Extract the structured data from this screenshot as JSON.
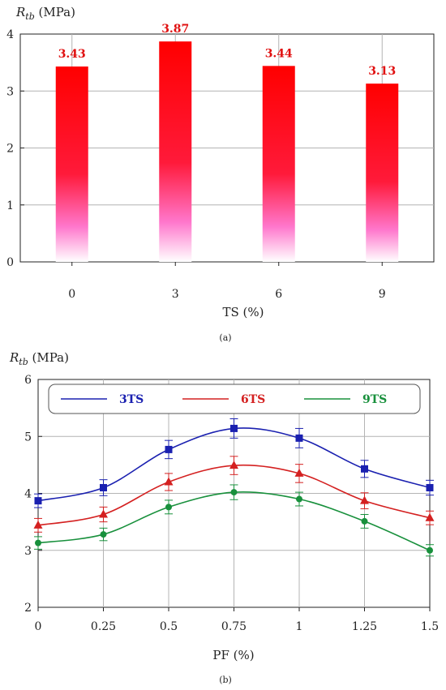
{
  "chart_data": [
    {
      "type": "bar",
      "panel": "(a)",
      "ylabel_main": "R",
      "ylabel_sub": "tb",
      "ylabel_unit": " (MPa)",
      "xlabel": "TS (%)",
      "categories": [
        "0",
        "3",
        "6",
        "9"
      ],
      "values": [
        3.43,
        3.87,
        3.44,
        3.13
      ],
      "value_labels": [
        "3.43",
        "3.87",
        "3.44",
        "3.13"
      ],
      "ylim": [
        0,
        4
      ],
      "yticks": [
        "0",
        "1",
        "2",
        "3",
        "4"
      ],
      "grid": true,
      "colors": {
        "bar_top": "#ff0000",
        "bar_mid": "#ff1a3a",
        "bar_low": "#ff77cc",
        "bar_bottom": "#ffffff",
        "label": "#e01010",
        "grid": "#b4b4b4"
      }
    },
    {
      "type": "line",
      "panel": "(b)",
      "ylabel_main": "R",
      "ylabel_sub": "tb",
      "ylabel_unit": " (MPa)",
      "xlabel": "PF (%)",
      "x": [
        0,
        0.25,
        0.5,
        0.75,
        1,
        1.25,
        1.5
      ],
      "xticks": [
        "0",
        "0.25",
        "0.5",
        "0.75",
        "1",
        "1.25",
        "1.5"
      ],
      "xlim": [
        0,
        1.5
      ],
      "ylim": [
        2,
        6
      ],
      "yticks": [
        "2",
        "3",
        "4",
        "5",
        "6"
      ],
      "grid": true,
      "legend_position": "top",
      "series": [
        {
          "name": "3TS",
          "color": "#1a20b0",
          "marker": "square",
          "values": [
            3.87,
            4.1,
            4.77,
            5.14,
            4.97,
            4.43,
            4.1
          ],
          "error": [
            0.12,
            0.14,
            0.16,
            0.17,
            0.17,
            0.15,
            0.13
          ]
        },
        {
          "name": "6TS",
          "color": "#d42020",
          "marker": "triangle",
          "values": [
            3.44,
            3.63,
            4.2,
            4.49,
            4.35,
            3.87,
            3.57
          ],
          "error": [
            0.12,
            0.13,
            0.15,
            0.16,
            0.16,
            0.14,
            0.12
          ]
        },
        {
          "name": "9TS",
          "color": "#18903c",
          "marker": "circle",
          "values": [
            3.13,
            3.28,
            3.76,
            4.02,
            3.9,
            3.51,
            3.0
          ],
          "error": [
            0.11,
            0.11,
            0.12,
            0.13,
            0.12,
            0.12,
            0.1
          ]
        }
      ]
    }
  ]
}
